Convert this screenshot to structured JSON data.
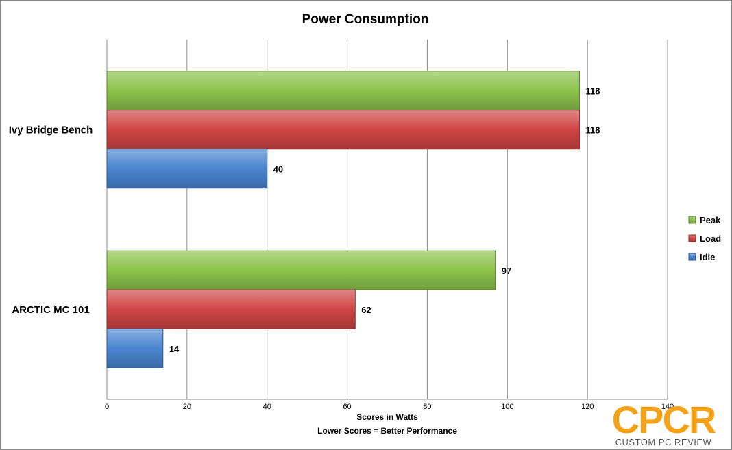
{
  "chart_data": {
    "type": "bar",
    "orientation": "horizontal",
    "title": "Power Consumption",
    "xlabel": "Scores in Watts",
    "xlabel_note": "Lower Scores = Better Performance",
    "ylabel": "",
    "xlim": [
      0,
      140
    ],
    "xticks": [
      0,
      20,
      40,
      60,
      80,
      100,
      120,
      140
    ],
    "grid": true,
    "legend_position": "right",
    "categories": [
      "Ivy Bridge Bench",
      "ARCTIC MC 101"
    ],
    "series": [
      {
        "name": "Peak",
        "color": "#8cc24b",
        "values": [
          118,
          97
        ]
      },
      {
        "name": "Load",
        "color": "#d04545",
        "values": [
          118,
          62
        ]
      },
      {
        "name": "Idle",
        "color": "#4a85d0",
        "values": [
          40,
          14
        ]
      }
    ]
  },
  "logo": {
    "text": "CPCR",
    "subtext": "CUSTOM PC REVIEW",
    "color": "#f5a21b"
  }
}
